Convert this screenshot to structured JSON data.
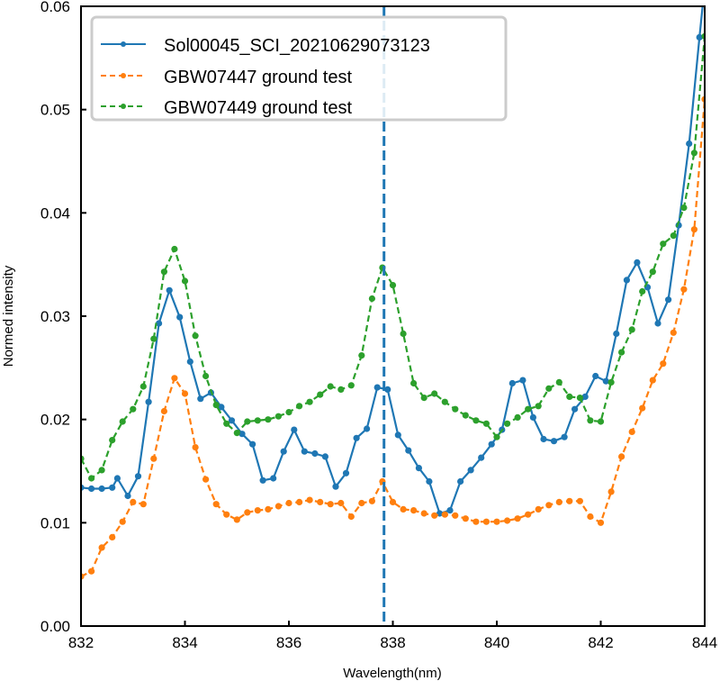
{
  "chart_data": {
    "type": "line",
    "title": "",
    "xlabel": "Wavelength(nm)",
    "ylabel": "Normed intensity",
    "xlim": [
      832,
      844
    ],
    "ylim": [
      0.0,
      0.06
    ],
    "xticks": [
      "832",
      "834",
      "836",
      "838",
      "840",
      "842",
      "844"
    ],
    "yticks": [
      "0.00",
      "0.01",
      "0.02",
      "0.03",
      "0.04",
      "0.05",
      "0.06"
    ],
    "grid": false,
    "legend_position": "upper left",
    "vline": {
      "x": 837.83,
      "color": "#1f77b4",
      "style": "dashed"
    },
    "series": [
      {
        "name": "Sol00045_SCI_20210629073123",
        "color": "#1f77b4",
        "style": "solid",
        "x": [
          832.0,
          832.2,
          832.4,
          832.6,
          832.7,
          832.9,
          833.1,
          833.3,
          833.5,
          833.7,
          833.9,
          834.1,
          834.3,
          834.5,
          834.7,
          834.9,
          835.1,
          835.3,
          835.5,
          835.7,
          835.9,
          836.1,
          836.3,
          836.5,
          836.7,
          836.9,
          837.1,
          837.3,
          837.5,
          837.7,
          837.9,
          838.1,
          838.3,
          838.5,
          838.7,
          838.9,
          839.1,
          839.3,
          839.5,
          839.7,
          839.9,
          840.1,
          840.3,
          840.5,
          840.7,
          840.9,
          841.1,
          841.3,
          841.5,
          841.7,
          841.9,
          842.1,
          842.3,
          842.5,
          842.7,
          842.9,
          843.1,
          843.3,
          843.5,
          843.7,
          843.9,
          844.0
        ],
        "values": [
          0.0134,
          0.0133,
          0.0133,
          0.0134,
          0.0143,
          0.0126,
          0.0145,
          0.0217,
          0.0293,
          0.0325,
          0.0299,
          0.0256,
          0.022,
          0.0226,
          0.0212,
          0.0199,
          0.0186,
          0.0176,
          0.0141,
          0.0143,
          0.0169,
          0.019,
          0.0169,
          0.0167,
          0.0164,
          0.0135,
          0.0148,
          0.0182,
          0.0191,
          0.0231,
          0.0229,
          0.0185,
          0.017,
          0.0153,
          0.014,
          0.0109,
          0.0112,
          0.014,
          0.0151,
          0.0163,
          0.0176,
          0.019,
          0.0235,
          0.0238,
          0.0202,
          0.0181,
          0.0179,
          0.0183,
          0.021,
          0.0222,
          0.0242,
          0.0237,
          0.0283,
          0.0335,
          0.0352,
          0.0328,
          0.0293,
          0.0316,
          0.0388,
          0.0467,
          0.057,
          0.062
        ]
      },
      {
        "name": "GBW07447 ground test",
        "color": "#ff7f0e",
        "style": "dashed",
        "x": [
          832.0,
          832.2,
          832.4,
          832.6,
          832.8,
          833.0,
          833.2,
          833.4,
          833.6,
          833.8,
          834.0,
          834.2,
          834.4,
          834.6,
          834.8,
          835.0,
          835.2,
          835.4,
          835.6,
          835.8,
          836.0,
          836.2,
          836.4,
          836.6,
          836.8,
          837.0,
          837.2,
          837.4,
          837.6,
          837.8,
          838.0,
          838.2,
          838.4,
          838.6,
          838.8,
          839.0,
          839.2,
          839.4,
          839.6,
          839.8,
          840.0,
          840.2,
          840.4,
          840.6,
          840.8,
          841.0,
          841.2,
          841.4,
          841.6,
          841.8,
          842.0,
          842.2,
          842.4,
          842.6,
          842.8,
          843.0,
          843.2,
          843.4,
          843.6,
          843.8,
          844.0
        ],
        "values": [
          0.0048,
          0.0053,
          0.0076,
          0.0086,
          0.0101,
          0.012,
          0.0118,
          0.0162,
          0.0208,
          0.024,
          0.0225,
          0.0173,
          0.0142,
          0.0118,
          0.0108,
          0.0103,
          0.011,
          0.0112,
          0.0113,
          0.0116,
          0.0119,
          0.012,
          0.0122,
          0.012,
          0.0118,
          0.0119,
          0.0106,
          0.0119,
          0.0121,
          0.014,
          0.012,
          0.0113,
          0.0112,
          0.0109,
          0.0107,
          0.0108,
          0.0107,
          0.0104,
          0.0101,
          0.0101,
          0.0101,
          0.0102,
          0.0104,
          0.0108,
          0.0113,
          0.0117,
          0.012,
          0.0121,
          0.0121,
          0.0106,
          0.01,
          0.013,
          0.0164,
          0.0188,
          0.0211,
          0.0238,
          0.0254,
          0.0284,
          0.0326,
          0.0384,
          0.051
        ]
      },
      {
        "name": "GBW07449 ground test",
        "color": "#2ca02c",
        "style": "dashed",
        "x": [
          832.0,
          832.2,
          832.4,
          832.6,
          832.8,
          833.0,
          833.2,
          833.4,
          833.6,
          833.8,
          834.0,
          834.2,
          834.4,
          834.6,
          834.8,
          835.0,
          835.2,
          835.4,
          835.6,
          835.8,
          836.0,
          836.2,
          836.4,
          836.6,
          836.8,
          837.0,
          837.2,
          837.4,
          837.6,
          837.8,
          838.0,
          838.2,
          838.4,
          838.6,
          838.8,
          839.0,
          839.2,
          839.4,
          839.6,
          839.8,
          840.0,
          840.2,
          840.4,
          840.6,
          840.8,
          841.0,
          841.2,
          841.4,
          841.6,
          841.8,
          842.0,
          842.2,
          842.4,
          842.6,
          842.8,
          843.0,
          843.2,
          843.4,
          843.6,
          843.8,
          844.0
        ],
        "values": [
          0.0162,
          0.0143,
          0.0151,
          0.018,
          0.0198,
          0.021,
          0.0232,
          0.0278,
          0.0343,
          0.0365,
          0.0334,
          0.0281,
          0.0242,
          0.0214,
          0.0196,
          0.0187,
          0.0198,
          0.0199,
          0.02,
          0.0203,
          0.0207,
          0.0213,
          0.0217,
          0.0224,
          0.0232,
          0.0229,
          0.0233,
          0.0262,
          0.0317,
          0.0347,
          0.033,
          0.0283,
          0.0235,
          0.0221,
          0.0225,
          0.0217,
          0.021,
          0.0204,
          0.0199,
          0.0196,
          0.0183,
          0.0196,
          0.0202,
          0.021,
          0.0213,
          0.023,
          0.0236,
          0.0222,
          0.0221,
          0.0199,
          0.0198,
          0.0236,
          0.0265,
          0.0287,
          0.0324,
          0.0343,
          0.037,
          0.0378,
          0.0405,
          0.0458,
          0.0571
        ]
      }
    ]
  }
}
